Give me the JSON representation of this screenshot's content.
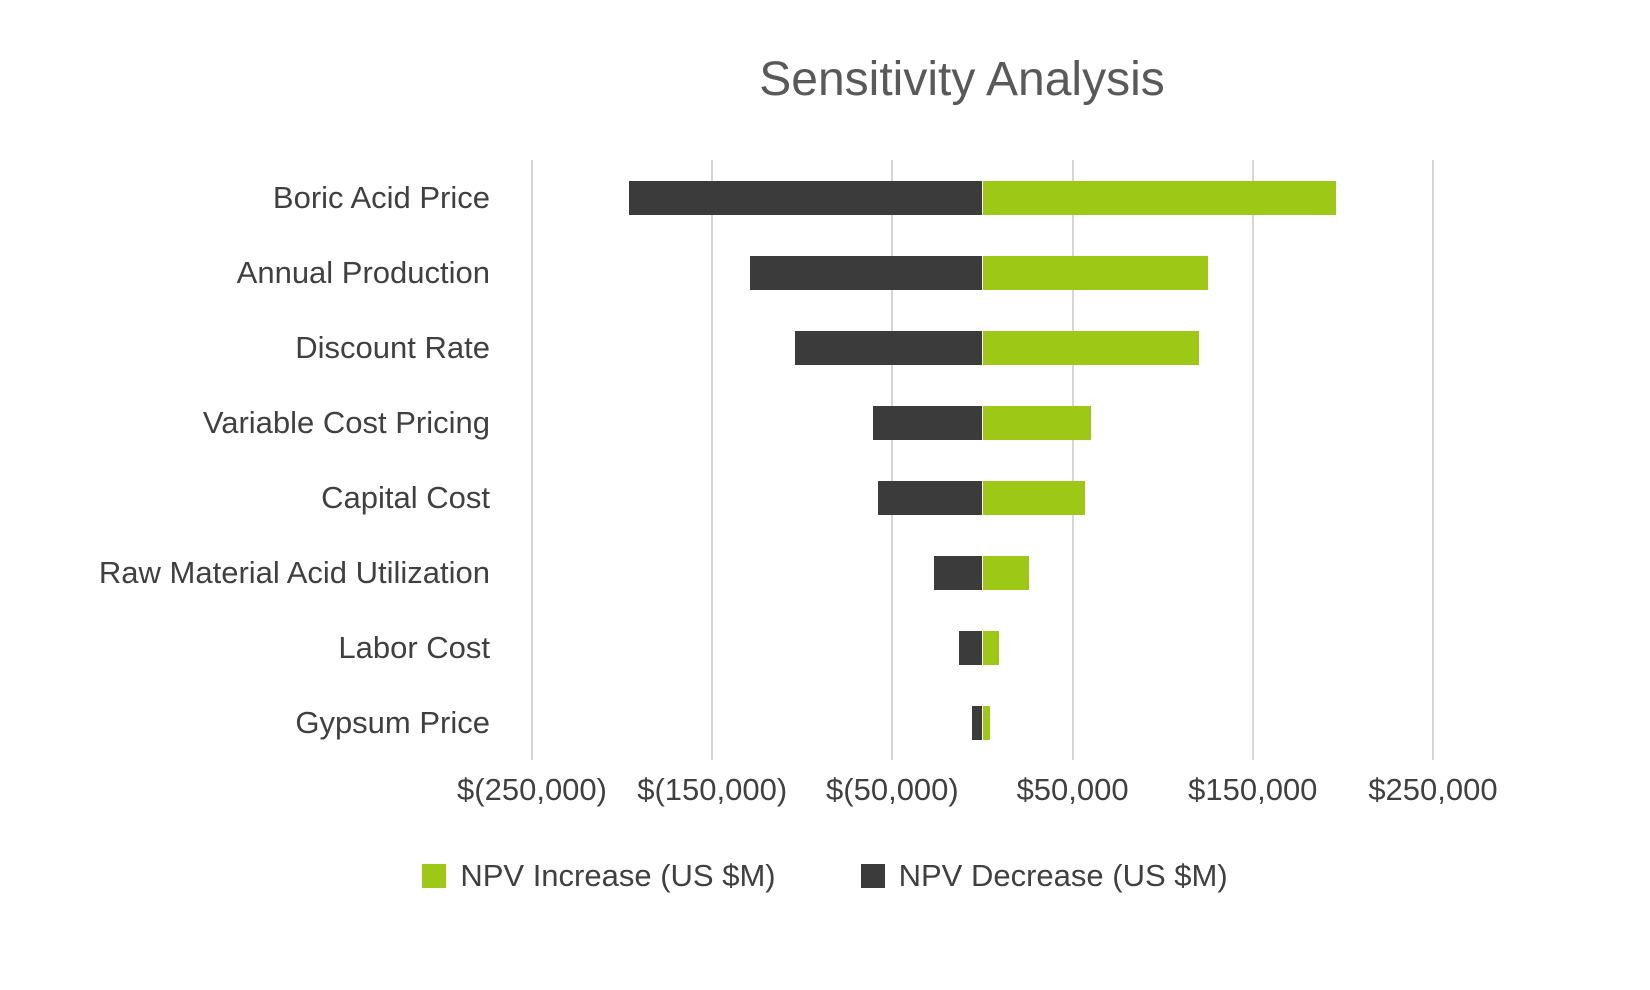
{
  "chart_data": {
    "type": "bar",
    "orientation": "horizontal",
    "variant": "tornado",
    "title": "Sensitivity Analysis",
    "categories": [
      "Boric Acid Price",
      "Annual Production",
      "Discount Rate",
      "Variable Cost Pricing",
      "Capital Cost",
      "Raw Material Acid Utilization",
      "Labor Cost",
      "Gypsum Price"
    ],
    "series": [
      {
        "name": "NPV Increase (US $M)",
        "color": "#9dc815",
        "values": [
          196000,
          125000,
          120000,
          60000,
          57000,
          26000,
          9000,
          4000
        ]
      },
      {
        "name": "NPV Decrease (US $M)",
        "color": "#3b3b3b",
        "values": [
          -196000,
          -129000,
          -104000,
          -61000,
          -58000,
          -27000,
          -13000,
          -6000
        ]
      }
    ],
    "x_axis": {
      "tick_labels": [
        "$(250,000)",
        "$(150,000)",
        "$(50,000)",
        "$50,000",
        "$150,000",
        "$250,000"
      ],
      "tick_values": [
        -250000,
        -150000,
        -50000,
        50000,
        150000,
        250000
      ],
      "range": [
        -265000,
        265000
      ],
      "grid": true
    },
    "legend": {
      "position": "bottom"
    },
    "colors": {
      "title_text": "#595959",
      "axis_text": "#404040",
      "gridline": "#d6d6d6",
      "background": "#ffffff"
    }
  }
}
